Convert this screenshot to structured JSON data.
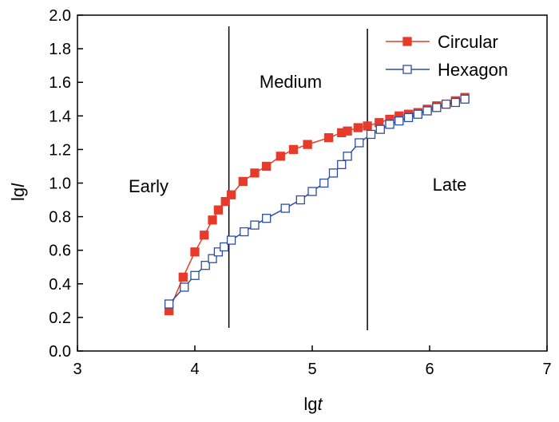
{
  "chart_data": {
    "type": "line",
    "xlabel": {
      "prefix": "lg",
      "variable": "t"
    },
    "ylabel": {
      "prefix": "lg",
      "variable": "l"
    },
    "xlim": [
      3,
      7
    ],
    "ylim": [
      0.0,
      2.0
    ],
    "xticks": [
      "3",
      "4",
      "5",
      "6",
      "7"
    ],
    "yticks": [
      "0.0",
      "0.2",
      "0.4",
      "0.6",
      "0.8",
      "1.0",
      "1.2",
      "1.4",
      "1.6",
      "1.8",
      "2.0"
    ],
    "grid": false,
    "legend_position": "top-right",
    "regions": {
      "boundaries": [
        4.29,
        5.47
      ],
      "labels": [
        "Early",
        "Medium",
        "Late"
      ]
    },
    "series": [
      {
        "name": "Circular",
        "color": "#e63b2a",
        "marker": "filled-square",
        "x": [
          3.78,
          3.9,
          4.0,
          4.08,
          4.15,
          4.2,
          4.26,
          4.31,
          4.41,
          4.51,
          4.61,
          4.73,
          4.84,
          4.96,
          5.14,
          5.25,
          5.3,
          5.39,
          5.47,
          5.57,
          5.66,
          5.74,
          5.82,
          5.9,
          5.98,
          6.06,
          6.14,
          6.22,
          6.3
        ],
        "y": [
          0.24,
          0.44,
          0.59,
          0.69,
          0.78,
          0.84,
          0.89,
          0.93,
          1.01,
          1.06,
          1.1,
          1.16,
          1.2,
          1.23,
          1.27,
          1.3,
          1.31,
          1.33,
          1.34,
          1.36,
          1.38,
          1.4,
          1.41,
          1.42,
          1.44,
          1.46,
          1.47,
          1.49,
          1.51
        ]
      },
      {
        "name": "Hexagon",
        "color": "#2e4d9e",
        "marker": "open-square",
        "x": [
          3.78,
          3.91,
          4.0,
          4.09,
          4.15,
          4.2,
          4.25,
          4.31,
          4.42,
          4.51,
          4.61,
          4.77,
          4.9,
          5.0,
          5.1,
          5.18,
          5.25,
          5.3,
          5.4,
          5.5,
          5.58,
          5.66,
          5.74,
          5.82,
          5.9,
          5.98,
          6.06,
          6.14,
          6.22,
          6.3
        ],
        "y": [
          0.28,
          0.38,
          0.45,
          0.51,
          0.55,
          0.59,
          0.62,
          0.66,
          0.71,
          0.75,
          0.79,
          0.85,
          0.9,
          0.95,
          1.0,
          1.06,
          1.11,
          1.16,
          1.24,
          1.29,
          1.32,
          1.35,
          1.37,
          1.39,
          1.41,
          1.43,
          1.45,
          1.47,
          1.48,
          1.5
        ]
      }
    ]
  }
}
